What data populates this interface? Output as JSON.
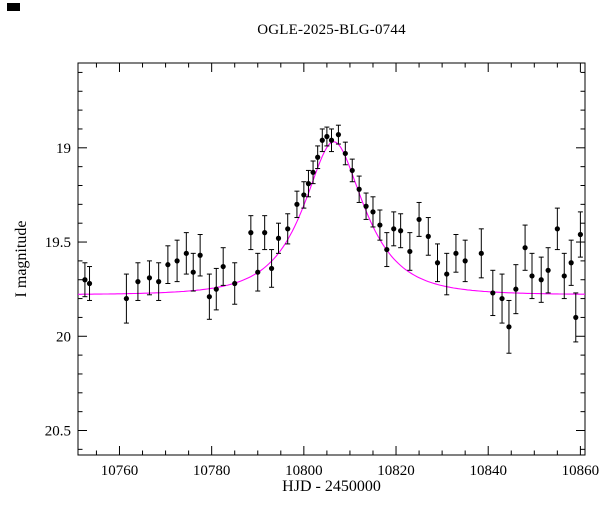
{
  "chart_data": {
    "type": "scatter",
    "title": "OGLE-2025-BLG-0744",
    "xlabel": "HJD - 2450000",
    "ylabel": "I magnitude",
    "xlim": [
      10751,
      10861
    ],
    "ylim_top": 18.55,
    "ylim_bottom": 20.63,
    "y_inverted": true,
    "x_major_ticks": [
      10760,
      10780,
      10800,
      10820,
      10840,
      10860
    ],
    "x_tick_labels": [
      "10760",
      "10780",
      "10800",
      "10820",
      "10840",
      "10860"
    ],
    "x_minor_step": 5,
    "y_major_ticks": [
      19,
      19.5,
      20,
      20.5
    ],
    "y_tick_labels": [
      "19",
      "19.5",
      "20",
      "20.5"
    ],
    "y_minor_step": 0.1,
    "grid": false,
    "legend": null,
    "point_color": "#000000",
    "model_color": "#ff00ff",
    "model": {
      "type": "paczynski",
      "t0": 10806.5,
      "tE": 11,
      "u0": 0.52,
      "I0": 19.78
    },
    "points": [
      [
        10752.5,
        19.7,
        0.09
      ],
      [
        10753.5,
        19.72,
        0.09
      ],
      [
        10761.5,
        19.8,
        0.13
      ],
      [
        10764.0,
        19.71,
        0.1
      ],
      [
        10766.5,
        19.69,
        0.09
      ],
      [
        10768.5,
        19.71,
        0.1
      ],
      [
        10770.5,
        19.62,
        0.1
      ],
      [
        10772.5,
        19.6,
        0.11
      ],
      [
        10774.5,
        19.56,
        0.11
      ],
      [
        10776.0,
        19.66,
        0.1
      ],
      [
        10777.5,
        19.57,
        0.11
      ],
      [
        10779.5,
        19.79,
        0.12
      ],
      [
        10781.0,
        19.75,
        0.11
      ],
      [
        10782.5,
        19.63,
        0.1
      ],
      [
        10785.0,
        19.72,
        0.11
      ],
      [
        10788.5,
        19.45,
        0.09
      ],
      [
        10790.0,
        19.66,
        0.1
      ],
      [
        10791.5,
        19.45,
        0.09
      ],
      [
        10793.0,
        19.64,
        0.1
      ],
      [
        10794.5,
        19.48,
        0.08
      ],
      [
        10796.5,
        19.43,
        0.08
      ],
      [
        10798.5,
        19.3,
        0.07
      ],
      [
        10800.0,
        19.25,
        0.07
      ],
      [
        10801.0,
        19.19,
        0.07
      ],
      [
        10802.0,
        19.13,
        0.06
      ],
      [
        10803.0,
        19.05,
        0.06
      ],
      [
        10804.0,
        18.96,
        0.06
      ],
      [
        10805.0,
        18.94,
        0.05
      ],
      [
        10806.0,
        18.96,
        0.06
      ],
      [
        10807.5,
        18.93,
        0.05
      ],
      [
        10809.0,
        19.03,
        0.06
      ],
      [
        10810.5,
        19.12,
        0.06
      ],
      [
        10812.0,
        19.22,
        0.07
      ],
      [
        10813.5,
        19.31,
        0.07
      ],
      [
        10815.0,
        19.34,
        0.08
      ],
      [
        10816.5,
        19.41,
        0.08
      ],
      [
        10818.0,
        19.54,
        0.09
      ],
      [
        10819.5,
        19.43,
        0.09
      ],
      [
        10821.0,
        19.44,
        0.09
      ],
      [
        10823.0,
        19.55,
        0.1
      ],
      [
        10825.0,
        19.38,
        0.09
      ],
      [
        10827.0,
        19.47,
        0.1
      ],
      [
        10829.0,
        19.61,
        0.1
      ],
      [
        10831.0,
        19.67,
        0.11
      ],
      [
        10833.0,
        19.56,
        0.1
      ],
      [
        10835.0,
        19.6,
        0.11
      ],
      [
        10838.5,
        19.56,
        0.13
      ],
      [
        10841.0,
        19.77,
        0.12
      ],
      [
        10843.0,
        19.8,
        0.13
      ],
      [
        10844.5,
        19.95,
        0.14
      ],
      [
        10846.0,
        19.75,
        0.13
      ],
      [
        10848.0,
        19.53,
        0.12
      ],
      [
        10849.5,
        19.68,
        0.12
      ],
      [
        10851.5,
        19.7,
        0.12
      ],
      [
        10853.0,
        19.65,
        0.12
      ],
      [
        10855.0,
        19.43,
        0.11
      ],
      [
        10856.5,
        19.68,
        0.12
      ],
      [
        10858.0,
        19.61,
        0.12
      ],
      [
        10859.0,
        19.9,
        0.13
      ],
      [
        10860.0,
        19.46,
        0.12
      ]
    ]
  }
}
